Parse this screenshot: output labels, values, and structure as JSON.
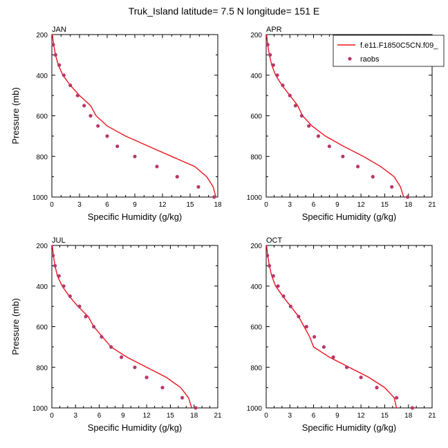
{
  "figure_title": "Truk_Island  latitude= 7.5 N longitude= 151 E",
  "legend": {
    "model": {
      "label": "f.e11.F1850C5CN.f09_",
      "color": "#e8141e"
    },
    "obs": {
      "label": "raobs",
      "color": "#b8386a"
    }
  },
  "chart_data": [
    {
      "type": "line",
      "title": "JAN",
      "xlabel": "Specific Humidity (g/kg)",
      "ylabel": "Pressure (mb)",
      "xlim": [
        0,
        18
      ],
      "xticks": [
        0,
        3,
        6,
        9,
        12,
        15,
        18
      ],
      "ylim": [
        1000,
        200
      ],
      "yticks": [
        200,
        400,
        600,
        800,
        1000
      ],
      "show_ylabel": true,
      "model": {
        "name": "f.e11.F1850C5CN.f09_",
        "x": [
          0.05,
          0.2,
          0.4,
          0.7,
          1.2,
          2.0,
          3.0,
          4.2,
          4.8,
          6.0,
          8.0,
          10.5,
          13.0,
          15.5,
          16.8,
          17.5,
          17.8
        ],
        "p": [
          200,
          250,
          300,
          350,
          400,
          450,
          500,
          550,
          600,
          650,
          700,
          750,
          800,
          850,
          900,
          950,
          1000
        ]
      },
      "obs": {
        "name": "raobs",
        "x": [
          0.15,
          0.4,
          0.8,
          1.3,
          2.0,
          2.8,
          3.5,
          4.2,
          5.0,
          6.0,
          7.1,
          9.0,
          11.4,
          13.6,
          15.9,
          17.6
        ],
        "p": [
          250,
          300,
          350,
          400,
          450,
          500,
          550,
          600,
          650,
          700,
          750,
          800,
          850,
          900,
          950,
          1000
        ]
      }
    },
    {
      "type": "line",
      "title": "APR",
      "xlabel": "Specific Humidity (g/kg)",
      "ylabel": "Pressure (mb)",
      "xlim": [
        0,
        21
      ],
      "xticks": [
        0,
        3,
        6,
        9,
        12,
        15,
        18,
        21
      ],
      "ylim": [
        1000,
        200
      ],
      "yticks": [
        200,
        400,
        600,
        800,
        1000
      ],
      "show_ylabel": false,
      "model": {
        "name": "f.e11.F1850C5CN.f09_",
        "x": [
          0.05,
          0.2,
          0.4,
          0.7,
          1.2,
          2.0,
          3.0,
          4.0,
          4.6,
          5.8,
          7.5,
          9.8,
          12.3,
          14.5,
          16.2,
          17.0,
          17.4
        ],
        "p": [
          200,
          250,
          300,
          350,
          400,
          450,
          500,
          550,
          600,
          650,
          700,
          750,
          800,
          850,
          900,
          950,
          1000
        ]
      },
      "obs": {
        "name": "raobs",
        "x": [
          0.2,
          0.5,
          0.9,
          1.4,
          2.1,
          3.0,
          3.7,
          4.5,
          5.4,
          6.6,
          8.0,
          9.7,
          11.6,
          13.5,
          15.9,
          17.9
        ],
        "p": [
          250,
          300,
          350,
          400,
          450,
          500,
          550,
          600,
          650,
          700,
          750,
          800,
          850,
          900,
          950,
          1000
        ]
      }
    },
    {
      "type": "line",
      "title": "JUL",
      "xlabel": "Specific Humidity (g/kg)",
      "ylabel": "Pressure (mb)",
      "xlim": [
        0,
        21
      ],
      "xticks": [
        0,
        3,
        6,
        9,
        12,
        15,
        18,
        21
      ],
      "ylim": [
        1000,
        200
      ],
      "yticks": [
        200,
        400,
        600,
        800,
        1000
      ],
      "show_ylabel": true,
      "model": {
        "name": "f.e11.F1850C5CN.f09_",
        "x": [
          0.05,
          0.2,
          0.4,
          0.7,
          1.3,
          2.2,
          3.3,
          4.6,
          5.3,
          6.4,
          7.5,
          9.5,
          12.0,
          14.5,
          16.3,
          17.3,
          17.7
        ],
        "p": [
          200,
          250,
          300,
          350,
          400,
          450,
          500,
          550,
          600,
          650,
          700,
          750,
          800,
          850,
          900,
          950,
          1000
        ]
      },
      "obs": {
        "name": "raobs",
        "x": [
          0.15,
          0.4,
          0.9,
          1.5,
          2.3,
          3.5,
          4.3,
          5.3,
          6.3,
          7.5,
          8.8,
          10.5,
          12.0,
          14.0,
          16.5,
          18.2
        ],
        "p": [
          250,
          300,
          350,
          400,
          450,
          500,
          550,
          600,
          650,
          700,
          750,
          800,
          850,
          900,
          950,
          1000
        ]
      }
    },
    {
      "type": "line",
      "title": "OCT",
      "xlabel": "Specific Humidity (g/kg)",
      "ylabel": "Pressure (mb)",
      "xlim": [
        0,
        21
      ],
      "xticks": [
        0,
        3,
        6,
        9,
        12,
        15,
        18,
        21
      ],
      "ylim": [
        1000,
        200
      ],
      "yticks": [
        200,
        400,
        600,
        800,
        1000
      ],
      "show_ylabel": false,
      "model": {
        "name": "f.e11.F1850C5CN.f09_",
        "x": [
          0.05,
          0.2,
          0.4,
          0.7,
          1.2,
          2.1,
          3.1,
          4.1,
          4.8,
          5.5,
          6.0,
          8.0,
          10.5,
          13.0,
          15.0,
          16.2,
          16.5
        ],
        "p": [
          200,
          250,
          300,
          350,
          400,
          450,
          500,
          550,
          600,
          650,
          700,
          750,
          800,
          850,
          900,
          950,
          1000
        ]
      },
      "obs": {
        "name": "raobs",
        "x": [
          0.15,
          0.4,
          0.9,
          1.5,
          2.2,
          3.1,
          4.1,
          5.1,
          6.1,
          7.3,
          8.5,
          10.2,
          12.0,
          14.0,
          16.5,
          18.5
        ],
        "p": [
          250,
          300,
          350,
          400,
          450,
          500,
          550,
          600,
          650,
          700,
          750,
          800,
          850,
          900,
          950,
          1000
        ]
      }
    }
  ]
}
